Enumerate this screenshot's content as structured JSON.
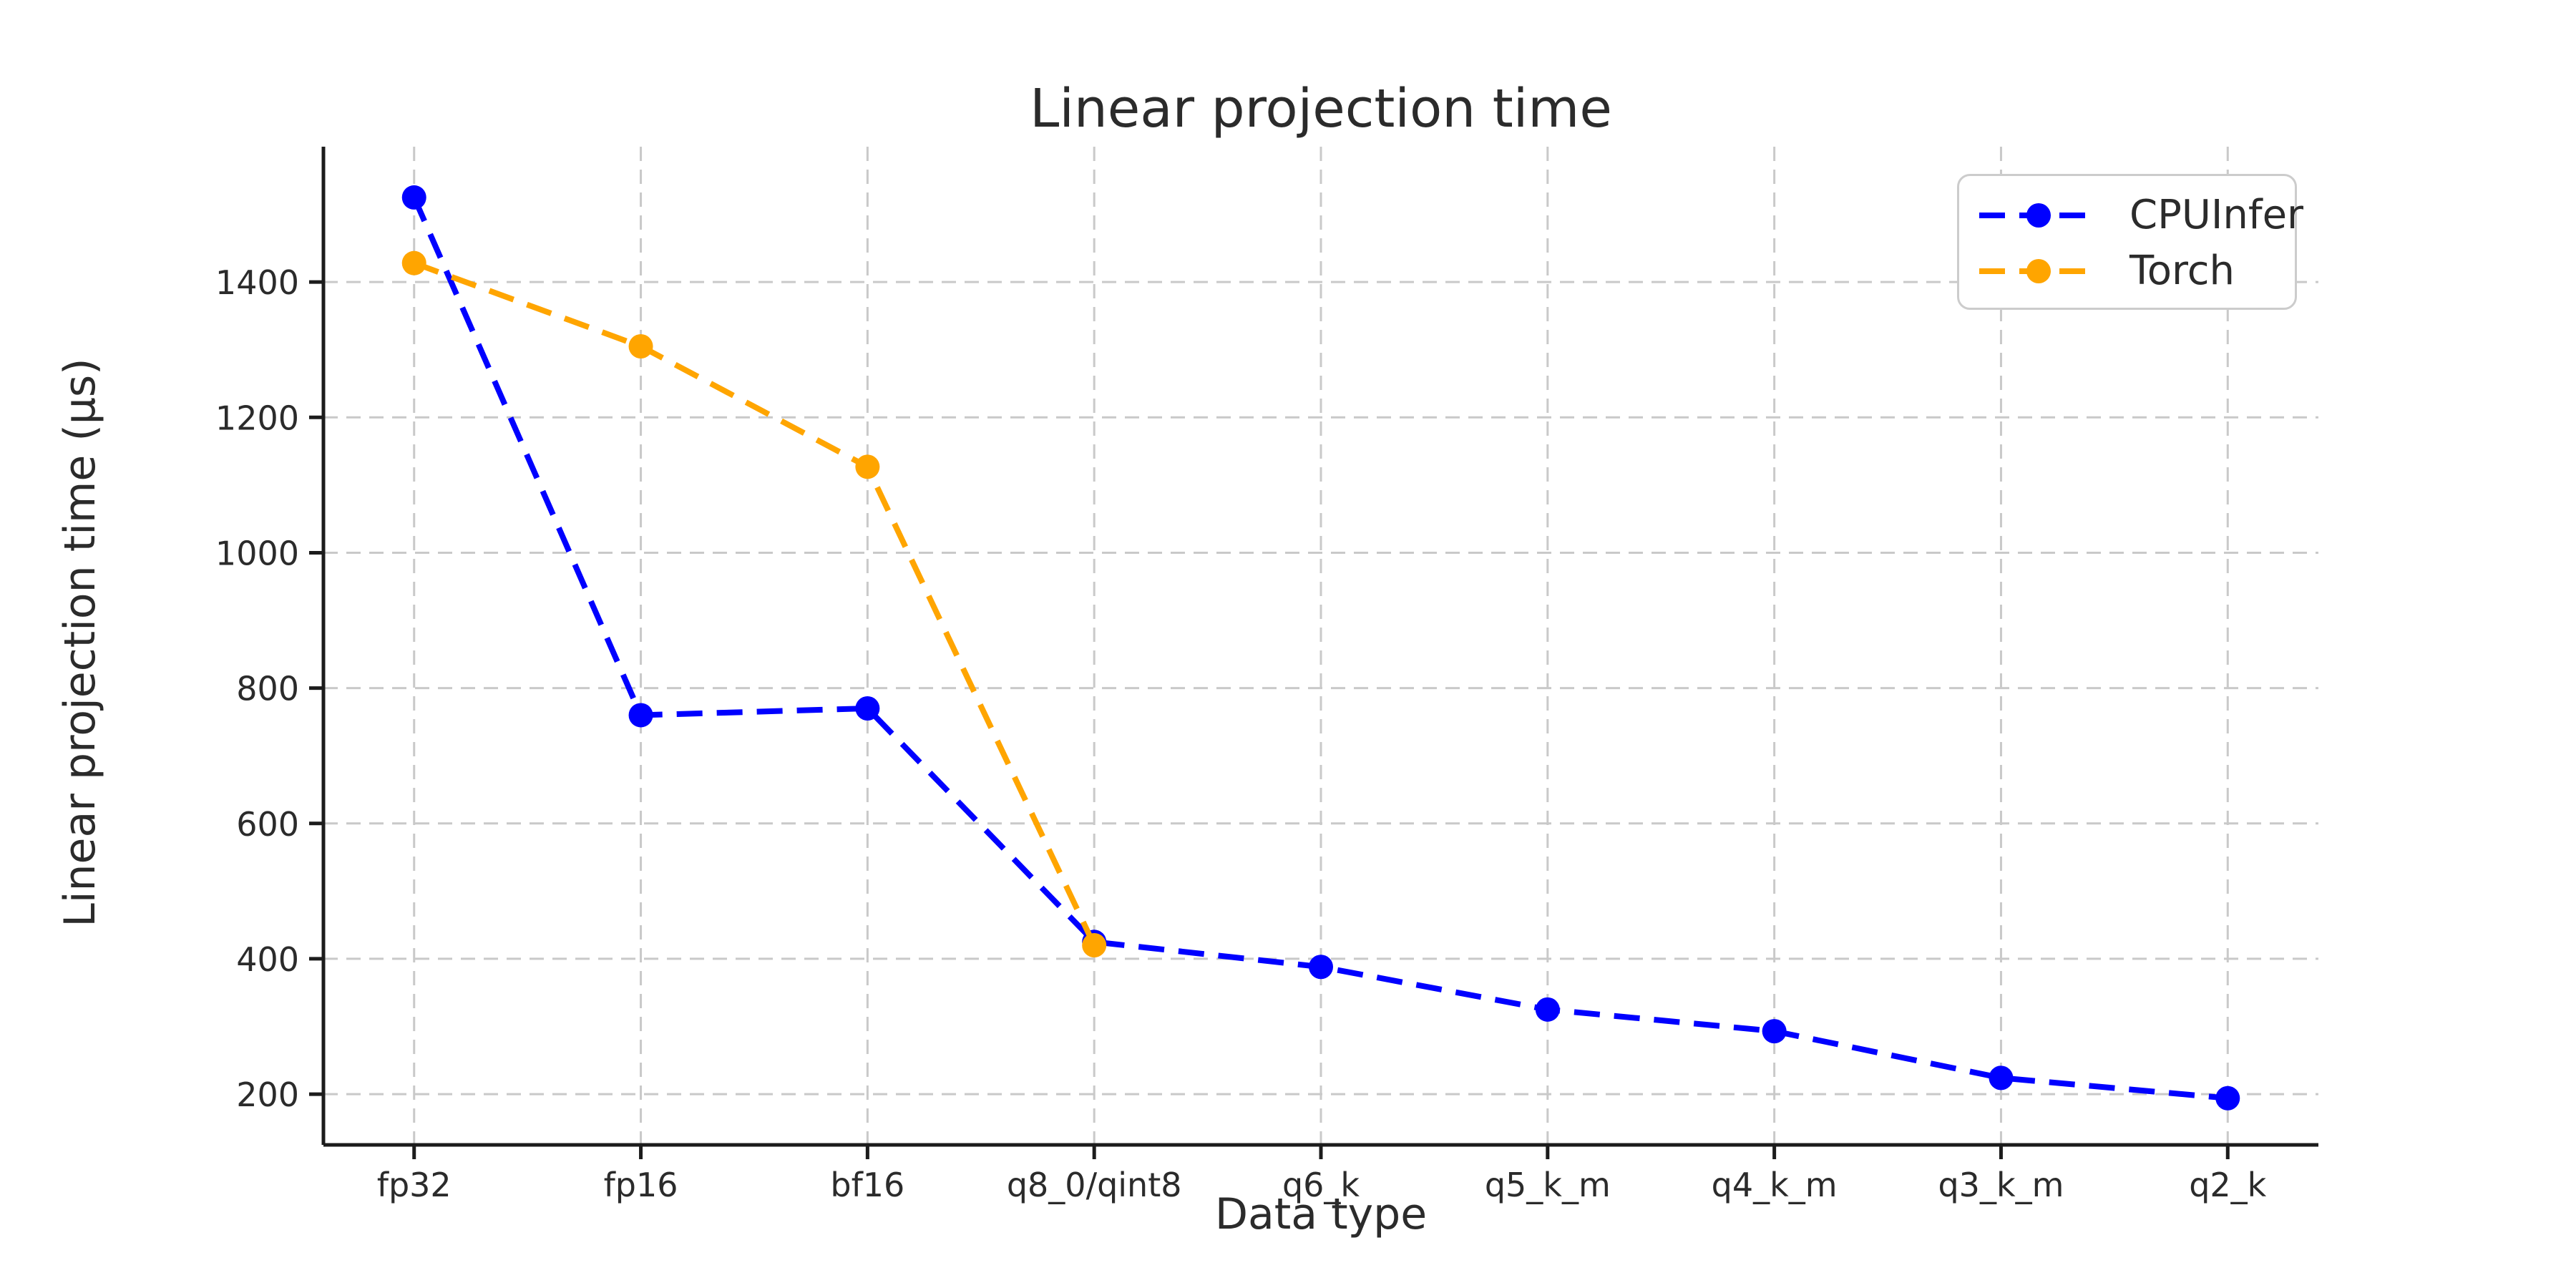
{
  "chart_data": {
    "type": "line",
    "title": "Linear projection time",
    "xlabel": "Data type",
    "ylabel": "Linear projection time (μs)",
    "categories": [
      "fp32",
      "fp16",
      "bf16",
      "q8_0/qint8",
      "q6_k",
      "q5_k_m",
      "q4_k_m",
      "q3_k_m",
      "q2_k"
    ],
    "series": [
      {
        "name": "CPUInfer",
        "color": "#0000ff",
        "linestyle": "dashed",
        "marker": "circle",
        "values": [
          1525,
          760,
          770,
          425,
          388,
          325,
          293,
          224,
          194
        ]
      },
      {
        "name": "Torch",
        "color": "#ffa500",
        "linestyle": "dashed",
        "marker": "circle",
        "values": [
          1428,
          1305,
          1127,
          420,
          null,
          null,
          null,
          null,
          null
        ]
      }
    ],
    "yticks": [
      200,
      400,
      600,
      800,
      1000,
      1200,
      1400
    ],
    "ylim": [
      125,
      1600
    ],
    "grid": true,
    "grid_style": "dashed",
    "legend_position": "upper right"
  },
  "legend": {
    "labels": [
      "CPUInfer",
      "Torch"
    ]
  },
  "style": {
    "text_color": "#2b2b2b",
    "grid_color": "#c9c9c9",
    "spine_color": "#1c1c1c",
    "background": "#ffffff"
  }
}
